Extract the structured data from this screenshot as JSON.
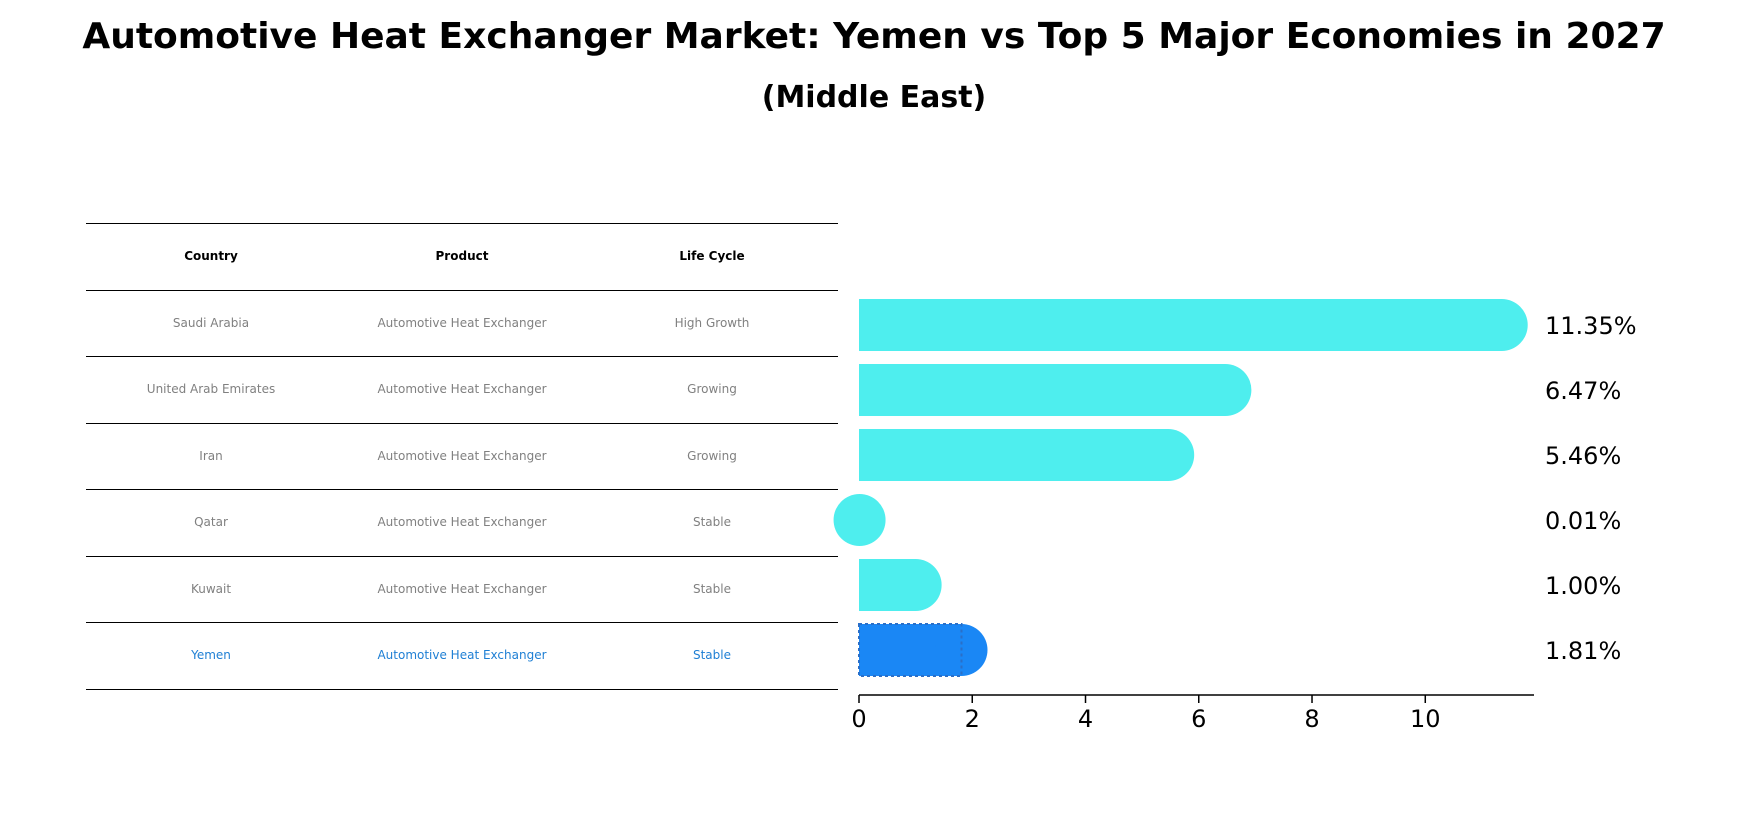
{
  "title": "Automotive Heat Exchanger Market: Yemen vs Top 5 Major Economies in 2027",
  "subtitle": "(Middle East)",
  "table": {
    "headers": [
      "Country",
      "Product",
      "Life Cycle"
    ],
    "rows": [
      [
        "Saudi Arabia",
        "Automotive Heat Exchanger",
        "High Growth"
      ],
      [
        "United Arab Emirates",
        "Automotive Heat Exchanger",
        "Growing"
      ],
      [
        "Iran",
        "Automotive Heat Exchanger",
        "Growing"
      ],
      [
        "Qatar",
        "Automotive Heat Exchanger",
        "Stable"
      ],
      [
        "Kuwait",
        "Automotive Heat Exchanger",
        "Stable"
      ],
      [
        "Yemen",
        "Automotive Heat Exchanger",
        "Stable"
      ]
    ],
    "highlight_row": 5
  },
  "colors": {
    "bar": "#4eeeee",
    "highlight_bar": "#1a87f5",
    "highlight_text": "#1e7fd4",
    "muted_text": "#808080"
  },
  "chart_data": {
    "type": "bar",
    "orientation": "horizontal",
    "title": "Automotive Heat Exchanger Market: Yemen vs Top 5 Major Economies in 2027",
    "subtitle": "(Middle East)",
    "categories": [
      "Saudi Arabia",
      "United Arab Emirates",
      "Iran",
      "Qatar",
      "Kuwait",
      "Yemen"
    ],
    "values": [
      11.35,
      6.47,
      5.46,
      0.01,
      1.0,
      1.81
    ],
    "value_labels": [
      "11.35%",
      "6.47%",
      "5.46%",
      "0.01%",
      "1.00%",
      "1.81%"
    ],
    "highlight": "Yemen",
    "xlim": [
      0,
      11.92
    ],
    "xticks": [
      0,
      2,
      4,
      6,
      8,
      10
    ],
    "xlabel": "",
    "ylabel": "",
    "grid": false
  }
}
